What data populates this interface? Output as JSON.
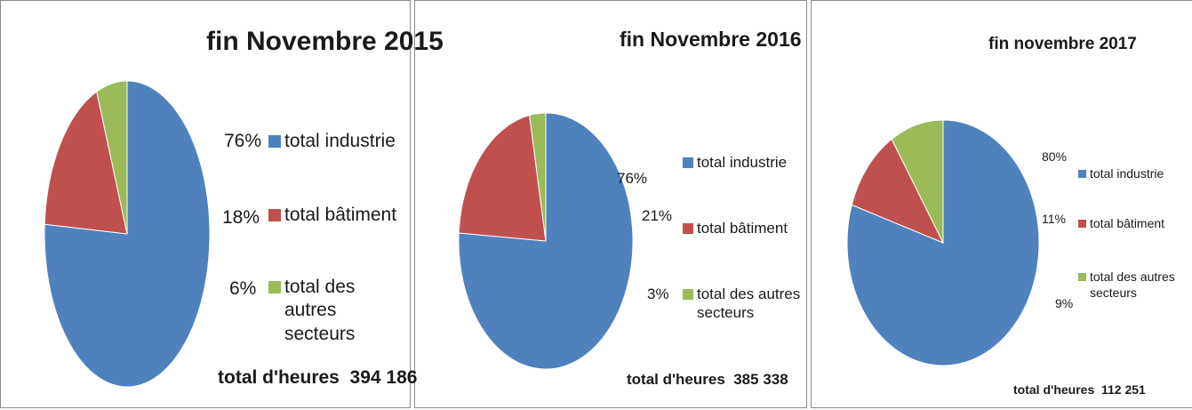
{
  "chart_data": [
    {
      "type": "pie",
      "title": "fin Novembre 2015",
      "categories": [
        "total industrie",
        "total bâtiment",
        "total des autres secteurs"
      ],
      "values": [
        76,
        18,
        6
      ],
      "value_labels": [
        "76%",
        "18%",
        "6%"
      ],
      "colors": [
        "#4f81bd",
        "#c0504d",
        "#9bbb59"
      ],
      "annotation": "total d'heures  394 186"
    },
    {
      "type": "pie",
      "title": "fin Novembre 2016",
      "categories": [
        "total industrie",
        "total bâtiment",
        "total des autres secteurs"
      ],
      "values": [
        76,
        21,
        3
      ],
      "value_labels": [
        "76%",
        "21%",
        "3%"
      ],
      "colors": [
        "#4f81bd",
        "#c0504d",
        "#9bbb59"
      ],
      "annotation": "total d'heures  385 338"
    },
    {
      "type": "pie",
      "title": "fin novembre 2017",
      "categories": [
        "total industrie",
        "total bâtiment",
        "total des autres secteurs"
      ],
      "values": [
        80,
        11,
        9
      ],
      "value_labels": [
        "80%",
        "11%",
        "9%"
      ],
      "colors": [
        "#4f81bd",
        "#c0504d",
        "#9bbb59"
      ],
      "annotation": "total d'heures  112 251"
    }
  ]
}
